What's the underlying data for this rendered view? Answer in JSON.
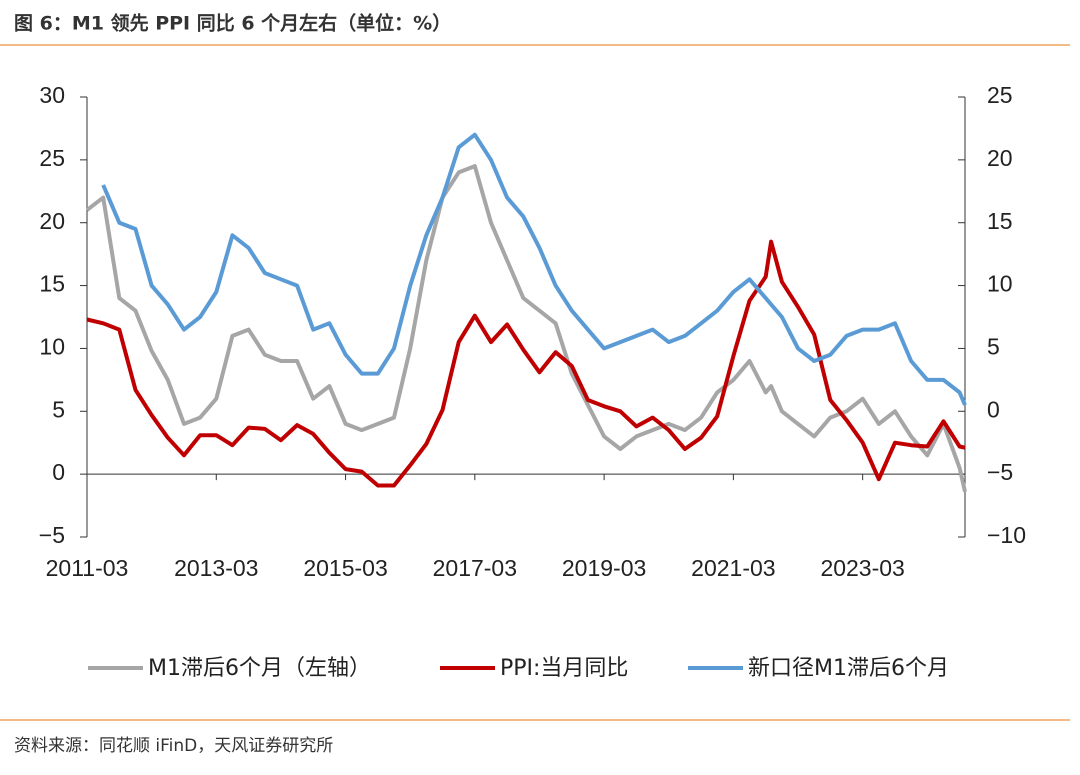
{
  "header": {
    "title": "图 6：M1 领先 PPI 同比 6 个月左右（单位：%）"
  },
  "chart_data": {
    "type": "line",
    "x": [
      "2011-03",
      "2011-06",
      "2011-09",
      "2011-12",
      "2012-03",
      "2012-06",
      "2012-09",
      "2012-12",
      "2013-03",
      "2013-06",
      "2013-09",
      "2013-12",
      "2014-03",
      "2014-06",
      "2014-09",
      "2014-12",
      "2015-03",
      "2015-06",
      "2015-09",
      "2015-12",
      "2016-03",
      "2016-06",
      "2016-09",
      "2016-12",
      "2017-03",
      "2017-06",
      "2017-09",
      "2017-12",
      "2018-03",
      "2018-06",
      "2018-09",
      "2018-12",
      "2019-03",
      "2019-06",
      "2019-09",
      "2019-12",
      "2020-03",
      "2020-06",
      "2020-09",
      "2020-12",
      "2021-03",
      "2021-06",
      "2021-09",
      "2021-10",
      "2021-12",
      "2022-03",
      "2022-06",
      "2022-09",
      "2022-12",
      "2023-03",
      "2023-06",
      "2023-09",
      "2023-12",
      "2024-03",
      "2024-06",
      "2024-09",
      "2024-10"
    ],
    "series": [
      {
        "name": "M1滞后6个月（左轴）",
        "color": "#a6a6a6",
        "axis": "y",
        "values": [
          21,
          22,
          14,
          13,
          9.8,
          7.5,
          4,
          4.5,
          6,
          11,
          11.5,
          9.5,
          9,
          9,
          6,
          7,
          4,
          3.5,
          4,
          4.5,
          10,
          17,
          22,
          24,
          24.5,
          20,
          17,
          14,
          13,
          12,
          8,
          5.5,
          3,
          2,
          3,
          3.5,
          4,
          3.5,
          4.5,
          6.5,
          7.5,
          9,
          6.5,
          7,
          5,
          4,
          3,
          4.5,
          5,
          6,
          4,
          5,
          3,
          1.5,
          4,
          0.5,
          -1.4
        ]
      },
      {
        "name": "PPI:当月同比",
        "color": "#c00000",
        "axis": "y2",
        "values": [
          7.3,
          7,
          6.5,
          1.7,
          -0.3,
          -2.1,
          -3.5,
          -1.9,
          -1.9,
          -2.7,
          -1.3,
          -1.4,
          -2.3,
          -1.1,
          -1.8,
          -3.3,
          -4.6,
          -4.8,
          -5.9,
          -5.9,
          -4.3,
          -2.6,
          0.1,
          5.5,
          7.6,
          5.5,
          6.9,
          4.9,
          3.1,
          4.7,
          3.6,
          0.9,
          0.4,
          0,
          -1.2,
          -0.5,
          -1.5,
          -3,
          -2.1,
          -0.4,
          4.4,
          8.8,
          10.7,
          13.5,
          10.3,
          8.3,
          6.1,
          0.9,
          -0.7,
          -2.5,
          -5.4,
          -2.5,
          -2.7,
          -2.8,
          -0.8,
          -2.8,
          -2.9
        ]
      },
      {
        "name": "新口径M1滞后6个月",
        "color": "#5b9bd5",
        "axis": "y2",
        "values": [
          null,
          18,
          15,
          14.5,
          10,
          8.5,
          6.5,
          7.5,
          9.5,
          14,
          13,
          11,
          10.5,
          10,
          6.5,
          7,
          4.5,
          3,
          3,
          5,
          10,
          14,
          17,
          21,
          22,
          20,
          17,
          15.5,
          13,
          10,
          8,
          6.5,
          5,
          5.5,
          6,
          6.5,
          5.5,
          6,
          7,
          8,
          9.5,
          10.5,
          9,
          8.5,
          7.5,
          5,
          4,
          4.5,
          6,
          6.5,
          6.5,
          7,
          4,
          2.5,
          2.5,
          1.5,
          0.5
        ]
      }
    ],
    "xlim": [
      "2011-03",
      "2024-10"
    ],
    "xticks": [
      "2011-03",
      "2013-03",
      "2015-03",
      "2017-03",
      "2019-03",
      "2021-03",
      "2023-03"
    ],
    "ylim": [
      -5,
      30
    ],
    "yticks": [
      {
        "value": -5,
        "label": "−5"
      },
      0,
      5,
      10,
      15,
      20,
      25,
      30
    ],
    "y2lim": [
      -10,
      25
    ],
    "y2ticks": [
      {
        "value": -10,
        "label": "−10"
      },
      {
        "value": -5,
        "label": "−5"
      },
      0,
      5,
      10,
      15,
      20,
      25
    ],
    "legend": "bottom"
  },
  "footer": {
    "source": "资料来源：同花顺 iFinD，天风证券研究所"
  }
}
